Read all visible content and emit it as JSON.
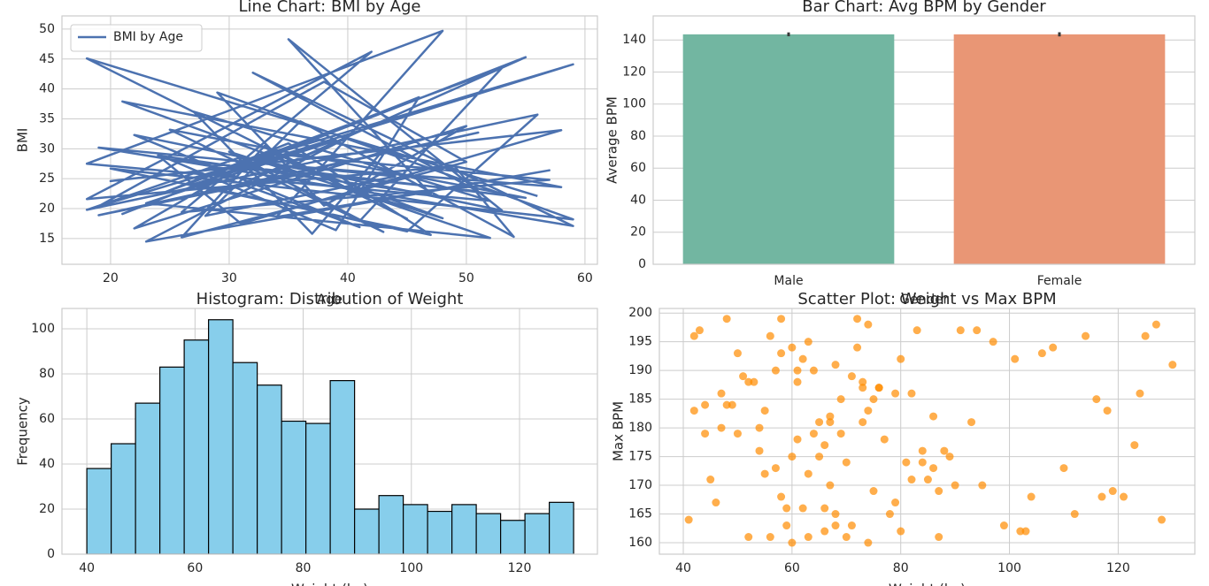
{
  "chart_data": [
    {
      "type": "line",
      "title": "Line Chart: BMI by Age",
      "xlabel": "Age",
      "ylabel": "BMI",
      "x": [
        56,
        18,
        45,
        33,
        26,
        50,
        38,
        19,
        59,
        29,
        41,
        22,
        53,
        35,
        47,
        24,
        31,
        58,
        20,
        43,
        37,
        27,
        52,
        18,
        48,
        34,
        57,
        23,
        40,
        30,
        55,
        21,
        46,
        39,
        25,
        51,
        32,
        59,
        19,
        44,
        28,
        36,
        54,
        49,
        18,
        42,
        26,
        57,
        33,
        22,
        50,
        38,
        29,
        59,
        20,
        47,
        35,
        24,
        53,
        41,
        31,
        18,
        56,
        45,
        27,
        39,
        23,
        52,
        34,
        58,
        21,
        48,
        30,
        43,
        25,
        55,
        37,
        19,
        51,
        28
      ],
      "series": [
        {
          "name": "BMI by Age",
          "color": "#4c72b0",
          "values": [
            22.1,
            45.1,
            18.3,
            30.5,
            15.2,
            27.8,
            41.2,
            20.4,
            44.1,
            25.6,
            16.9,
            32.3,
            19.7,
            48.3,
            22.4,
            28.9,
            17.5,
            33.1,
            24.6,
            29.8,
            15.8,
            36.2,
            21.3,
            27.5,
            49.7,
            18.6,
            26.4,
            14.5,
            31.9,
            23.2,
            45.3,
            19.1,
            38.6,
            16.4,
            28.2,
            22.9,
            42.7,
            17.1,
            30.2,
            25.4,
            18.8,
            34.6,
            15.3,
            27.1,
            21.6,
            46.2,
            19.4,
            24.8,
            29.3,
            16.7,
            33.8,
            20.5,
            39.4,
            18.2,
            26.7,
            15.6,
            30.9,
            22.3,
            43.5,
            17.9,
            28.6,
            19.8,
            35.7,
            16.2,
            24.1,
            31.4,
            20.9,
            15.1,
            27.3,
            23.6,
            37.9,
            18.4,
            29.5,
            16.1,
            33.2,
            21.8,
            26.1,
            18.9,
            32.7,
            22.6
          ]
        }
      ],
      "xlim": [
        15.9,
        61.05
      ],
      "xticks": [
        20,
        30,
        40,
        50,
        60
      ],
      "ylim": [
        10.7,
        52.2
      ],
      "yticks": [
        15,
        20,
        25,
        30,
        35,
        40,
        45,
        50
      ],
      "grid": true,
      "legend": "upper left"
    },
    {
      "type": "bar",
      "title": "Bar Chart: Avg BPM by Gender",
      "xlabel": "Gender",
      "ylabel": "Average BPM",
      "categories": [
        "Male",
        "Female"
      ],
      "values": [
        143.5,
        143.5
      ],
      "errors": [
        1.2,
        1.3
      ],
      "colors": [
        "#72b6a1",
        "#e99675"
      ],
      "ylim": [
        0,
        155
      ],
      "yticks": [
        0,
        20,
        40,
        60,
        80,
        100,
        120,
        140
      ],
      "grid": true
    },
    {
      "type": "histogram",
      "title": "Histogram: Distribution of Weight",
      "xlabel": "Weight (kg)",
      "ylabel": "Frequency",
      "bins": [
        40,
        44.5,
        49,
        53.5,
        58,
        62.5,
        67,
        71.5,
        76,
        80.5,
        85,
        89.5,
        94,
        98.5,
        103,
        107.5,
        112,
        116.5,
        121,
        125.5,
        130
      ],
      "values": [
        38,
        49,
        67,
        83,
        95,
        104,
        85,
        75,
        59,
        58,
        77,
        20,
        26,
        22,
        19,
        22,
        18,
        15,
        18,
        23
      ],
      "color": "#87ceeb",
      "edgecolor": "#000000",
      "xlim": [
        35.4,
        134.4
      ],
      "xticks": [
        40,
        60,
        80,
        100,
        120
      ],
      "ylim": [
        0,
        109
      ],
      "yticks": [
        0,
        20,
        40,
        60,
        80,
        100
      ],
      "grid": true
    },
    {
      "type": "scatter",
      "title": "Scatter Plot: Weight vs Max BPM",
      "xlabel": "Weight (kg)",
      "ylabel": "Max BPM",
      "x": [
        42,
        55,
        61,
        68,
        73,
        48,
        59,
        66,
        80,
        87,
        44,
        52,
        63,
        70,
        76,
        58,
        64,
        91,
        102,
        118,
        45,
        57,
        62,
        69,
        84,
        50,
        60,
        67,
        74,
        95,
        41,
        53,
        65,
        72,
        79,
        86,
        110,
        125,
        47,
        56,
        61,
        68,
        75,
        82,
        99,
        43,
        54,
        63,
        71,
        78,
        88,
        106,
        121,
        49,
        58,
        66,
        73,
        81,
        93,
        114,
        46,
        55,
        62,
        70,
        77,
        85,
        97,
        128,
        51,
        60,
        67,
        74,
        83,
        104,
        116,
        44,
        57,
        64,
        71,
        79,
        90,
        108,
        123,
        52,
        59,
        65,
        72,
        80,
        89,
        101,
        119,
        48,
        56,
        63,
        69,
        76,
        86,
        112,
        127,
        42,
        54,
        61,
        68,
        75,
        82,
        94,
        117,
        47,
        58,
        66,
        73,
        84,
        103,
        124,
        50,
        60,
        67,
        74,
        87,
        130
      ],
      "values": [
        196,
        172,
        188,
        165,
        181,
        199,
        163,
        177,
        192,
        169,
        184,
        161,
        195,
        174,
        187,
        168,
        179,
        197,
        162,
        183,
        171,
        190,
        166,
        185,
        176,
        193,
        160,
        181,
        198,
        170,
        164,
        188,
        175,
        194,
        167,
        182,
        173,
        196,
        186,
        161,
        178,
        191,
        169,
        186,
        163,
        197,
        180,
        172,
        189,
        165,
        176,
        193,
        168,
        184,
        199,
        162,
        187,
        174,
        181,
        196,
        167,
        183,
        192,
        161,
        178,
        171,
        195,
        164,
        189,
        175,
        182,
        160,
        197,
        168,
        185,
        179,
        173,
        190,
        163,
        186,
        170,
        194,
        177,
        188,
        166,
        181,
        199,
        162,
        175,
        192,
        169,
        184,
        196,
        161,
        179,
        187,
        173,
        165,
        198,
        183,
        176,
        190,
        163,
        185,
        171,
        197,
        168,
        180,
        193,
        166,
        188,
        174,
        162,
        186,
        179,
        194,
        170,
        183,
        161,
        191
      ],
      "color": "#ff8c00",
      "alpha": 0.7,
      "xlim": [
        35.6,
        134.1
      ],
      "xticks": [
        40,
        60,
        80,
        100,
        120
      ],
      "ylim": [
        158,
        200.8
      ],
      "yticks": [
        160,
        165,
        170,
        175,
        180,
        185,
        190,
        195,
        200
      ],
      "grid": true
    }
  ]
}
